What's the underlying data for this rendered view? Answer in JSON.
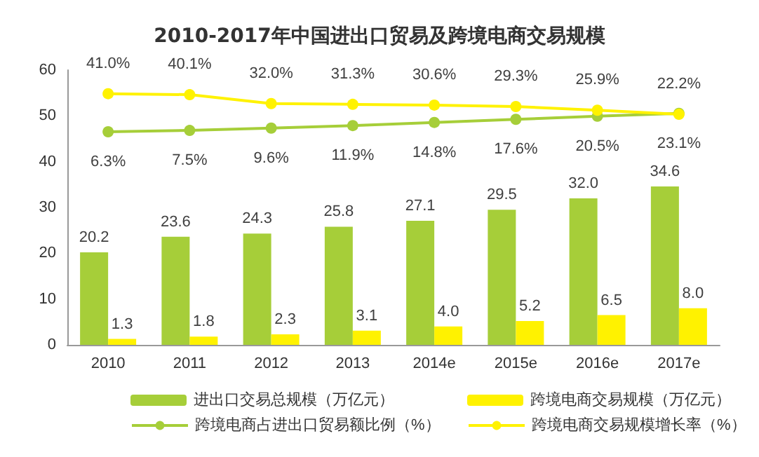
{
  "chart_data": {
    "type": "bar",
    "title": "2010-2017年中国进出口贸易及跨境电商交易规模",
    "categories": [
      "2010",
      "2011",
      "2012",
      "2013",
      "2014e",
      "2015e",
      "2016e",
      "2017e"
    ],
    "series": [
      {
        "name": "进出口交易总规模（万亿元）",
        "color": "#a6ce39",
        "values": [
          20.2,
          23.6,
          24.3,
          25.8,
          27.1,
          29.5,
          32.0,
          34.6
        ],
        "value_labels": [
          "20.2",
          "23.6",
          "24.3",
          "25.8",
          "27.1",
          "29.5",
          "32.0",
          "34.6"
        ]
      },
      {
        "name": "跨境电商交易规模（万亿元）",
        "color": "#fff200",
        "values": [
          1.3,
          1.8,
          2.3,
          3.1,
          4.0,
          5.2,
          6.5,
          8.0
        ],
        "value_labels": [
          "1.3",
          "1.8",
          "2.3",
          "3.1",
          "4.0",
          "5.2",
          "6.5",
          "8.0"
        ]
      },
      {
        "name": "跨境电商占进出口贸易额比例（%）",
        "type": "line",
        "axis": "y2",
        "color": "#a6ce39",
        "values": [
          6.3,
          7.5,
          9.6,
          11.9,
          14.8,
          17.6,
          20.5,
          23.1
        ],
        "value_labels": [
          "6.3%",
          "7.5%",
          "9.6%",
          "11.9%",
          "14.8%",
          "17.6%",
          "20.5%",
          "23.1%"
        ]
      },
      {
        "name": "跨境电商交易规模增长率（%）",
        "type": "line",
        "axis": "y2",
        "color": "#fff200",
        "values": [
          41.0,
          40.1,
          32.0,
          31.3,
          30.6,
          29.3,
          25.9,
          22.2
        ],
        "value_labels": [
          "41.0%",
          "40.1%",
          "32.0%",
          "31.3%",
          "30.6%",
          "29.3%",
          "25.9%",
          "22.2%"
        ]
      }
    ],
    "ylim": [
      0,
      60
    ],
    "yticks": [
      0,
      10,
      20,
      30,
      40,
      50,
      60
    ],
    "tick_labels": "xy",
    "marker": "circle",
    "line_style": "solid",
    "grid": false,
    "legend": "bottom"
  }
}
